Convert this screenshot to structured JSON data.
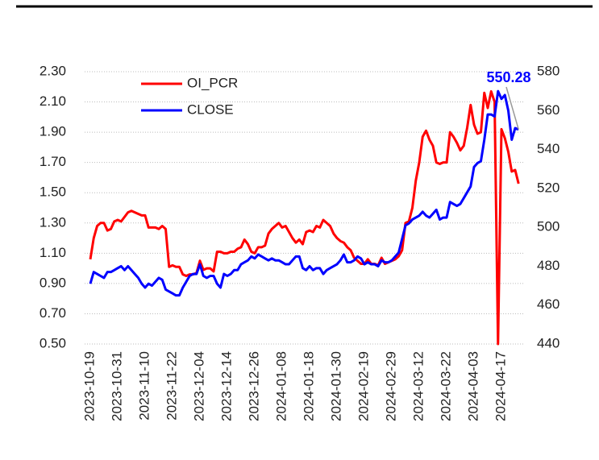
{
  "chart_data": {
    "type": "line",
    "categories": [
      "2023-10-19",
      null,
      null,
      null,
      null,
      null,
      null,
      null,
      "2023-10-31",
      null,
      null,
      null,
      null,
      null,
      null,
      null,
      "2023-11-10",
      null,
      null,
      null,
      null,
      null,
      null,
      null,
      "2023-11-22",
      null,
      null,
      null,
      null,
      null,
      null,
      null,
      "2023-12-04",
      null,
      null,
      null,
      null,
      null,
      null,
      null,
      "2023-12-14",
      null,
      null,
      null,
      null,
      null,
      null,
      null,
      "2023-12-26",
      null,
      null,
      null,
      null,
      null,
      null,
      null,
      "2024-01-08",
      null,
      null,
      null,
      null,
      null,
      null,
      null,
      "2024-01-18",
      null,
      null,
      null,
      null,
      null,
      null,
      null,
      "2024-01-30",
      null,
      null,
      null,
      null,
      null,
      null,
      null,
      "2024-02-19",
      null,
      null,
      null,
      null,
      null,
      null,
      null,
      "2024-02-29",
      null,
      null,
      null,
      null,
      null,
      null,
      null,
      "2024-03-12",
      null,
      null,
      null,
      null,
      null,
      null,
      null,
      "2024-03-22",
      null,
      null,
      null,
      null,
      null,
      null,
      null,
      "2024-04-03",
      null,
      null,
      null,
      null,
      null,
      null,
      null,
      "2024-04-17",
      null,
      null,
      null,
      null,
      null
    ],
    "series": [
      {
        "name": "OI_PCR",
        "color": "#ff0000",
        "axis": "y",
        "values": [
          1.06,
          1.2,
          1.28,
          1.3,
          1.3,
          1.25,
          1.26,
          1.31,
          1.32,
          1.31,
          1.34,
          1.37,
          1.38,
          1.37,
          1.36,
          1.35,
          1.35,
          1.27,
          1.27,
          1.27,
          1.26,
          1.28,
          1.26,
          1.01,
          1.02,
          1.01,
          1.01,
          0.96,
          0.95,
          0.96,
          0.96,
          0.97,
          1.05,
          0.99,
          1.0,
          1.0,
          0.98,
          1.11,
          1.11,
          1.1,
          1.1,
          1.11,
          1.11,
          1.13,
          1.14,
          1.19,
          1.16,
          1.11,
          1.1,
          1.14,
          1.14,
          1.15,
          1.23,
          1.26,
          1.28,
          1.3,
          1.27,
          1.28,
          1.24,
          1.2,
          1.17,
          1.19,
          1.16,
          1.24,
          1.25,
          1.24,
          1.28,
          1.27,
          1.32,
          1.3,
          1.28,
          1.23,
          1.2,
          1.18,
          1.17,
          1.14,
          1.12,
          1.07,
          1.05,
          1.03,
          1.03,
          1.06,
          1.03,
          1.03,
          1.02,
          1.07,
          1.03,
          1.04,
          1.05,
          1.06,
          1.08,
          1.12,
          1.3,
          1.31,
          1.4,
          1.58,
          1.7,
          1.87,
          1.91,
          1.85,
          1.81,
          1.7,
          1.69,
          1.7,
          1.7,
          1.9,
          1.87,
          1.83,
          1.78,
          1.81,
          1.93,
          2.08,
          1.95,
          1.89,
          1.9,
          2.16,
          2.06,
          2.17,
          2.1,
          0.5,
          1.92,
          1.86,
          1.77,
          1.64,
          1.65,
          1.56
        ]
      },
      {
        "name": "CLOSE",
        "color": "#0000ff",
        "axis": "y2",
        "values": [
          471,
          477,
          476,
          475,
          474,
          477,
          477,
          478,
          479,
          480,
          478,
          480,
          478,
          476,
          474,
          471,
          469,
          471,
          470,
          472,
          474,
          473,
          468,
          467,
          466,
          465,
          465,
          469,
          472,
          475,
          476,
          476,
          481,
          475,
          474,
          475,
          475,
          471,
          469,
          476,
          475,
          476,
          478,
          478,
          481,
          482,
          483,
          485,
          484,
          486,
          485,
          484,
          483,
          484,
          483,
          483,
          482,
          481,
          481,
          483,
          485,
          485,
          479,
          478,
          480,
          478,
          479,
          479,
          476,
          478,
          479,
          480,
          481,
          483,
          486,
          482,
          482,
          483,
          485,
          484,
          481,
          482,
          481,
          481,
          480,
          483,
          482,
          482,
          483,
          485,
          487,
          494,
          501,
          502,
          504,
          505,
          506,
          508,
          506,
          505,
          507,
          509,
          504,
          505,
          505,
          513,
          512,
          511,
          512,
          515,
          518,
          521,
          531,
          533,
          534,
          545,
          558,
          558,
          557,
          570,
          566,
          568,
          560,
          545,
          551,
          550.28
        ]
      }
    ],
    "ylim": [
      0.5,
      2.3
    ],
    "yticks": [
      {
        "value": 0.5,
        "label": "0.50"
      },
      {
        "value": 0.7,
        "label": "0.70"
      },
      {
        "value": 0.9,
        "label": "0.90"
      },
      {
        "value": 1.1,
        "label": "1.10"
      },
      {
        "value": 1.3,
        "label": "1.30"
      },
      {
        "value": 1.5,
        "label": "1.50"
      },
      {
        "value": 1.7,
        "label": "1.70"
      },
      {
        "value": 1.9,
        "label": "1.90"
      },
      {
        "value": 2.1,
        "label": "2.10"
      },
      {
        "value": 2.3,
        "label": "2.30"
      }
    ],
    "y2lim": [
      440,
      580
    ],
    "y2ticks": [
      440,
      460,
      480,
      500,
      520,
      540,
      560,
      580
    ],
    "grid": true,
    "legend": "upper-left"
  }
}
